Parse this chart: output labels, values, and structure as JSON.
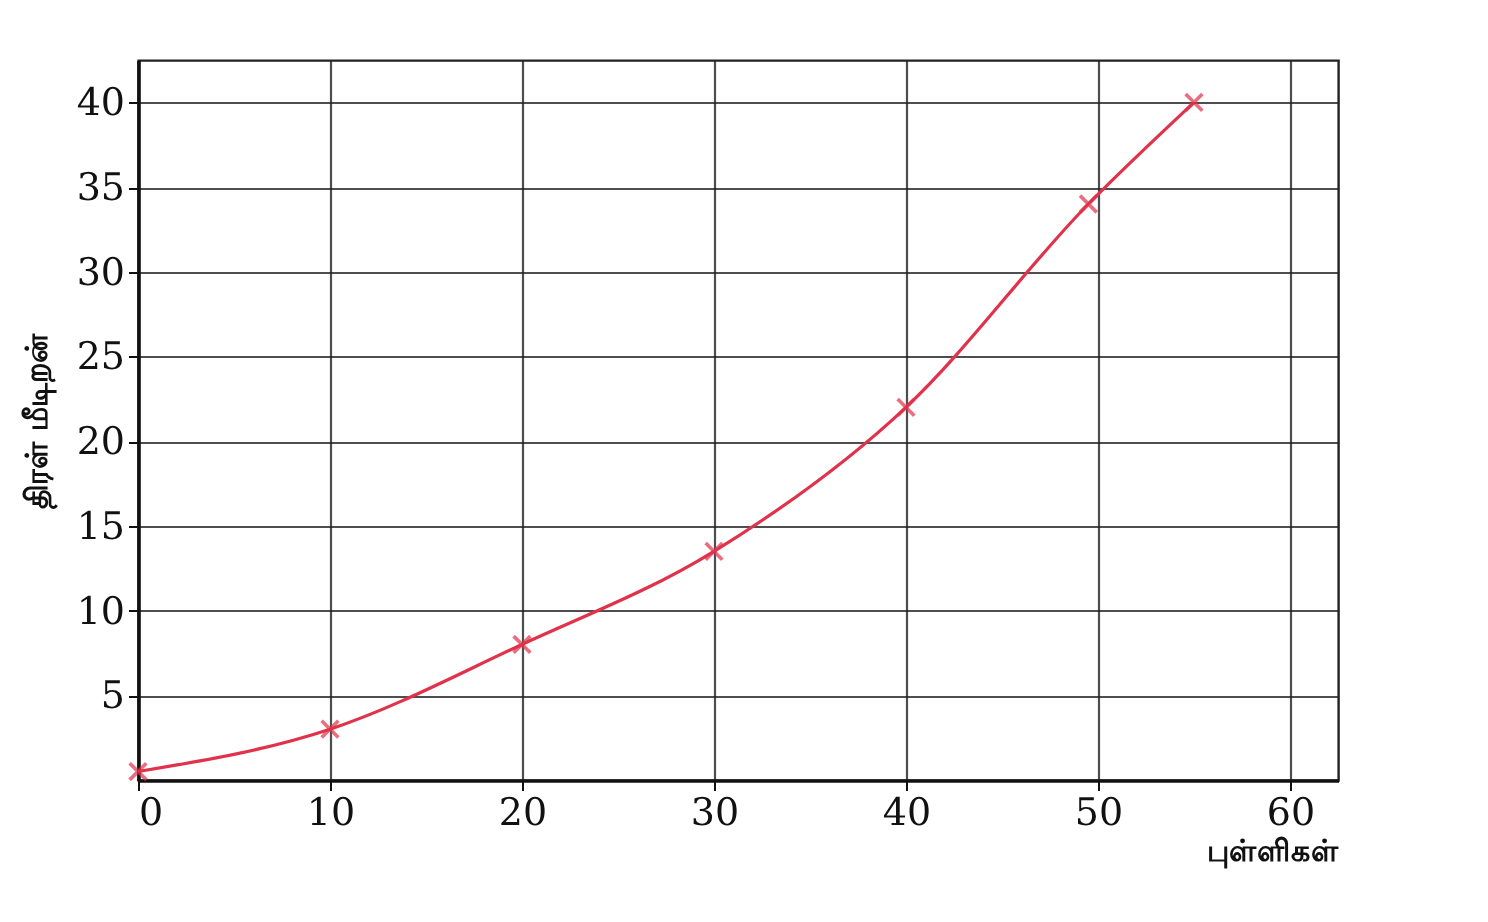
{
  "chart_data": {
    "type": "line",
    "xlabel": "புள்ளிகள்",
    "ylabel": "திரள் மீடிறன்",
    "x": [
      0,
      10,
      20,
      30,
      40,
      49.5,
      55
    ],
    "series": [
      {
        "color": "#e0324a",
        "values": [
          0.5,
          3,
          8,
          13.5,
          22,
          34,
          40
        ]
      }
    ],
    "xlim": [
      0,
      62.5
    ],
    "ylim": [
      0,
      42.5
    ],
    "xticks": [
      0,
      10,
      20,
      30,
      40,
      50,
      60
    ],
    "yticks": [
      5,
      10,
      15,
      20,
      25,
      30,
      35,
      40
    ],
    "grid": true,
    "marker": "cross",
    "line_style": "solid"
  }
}
